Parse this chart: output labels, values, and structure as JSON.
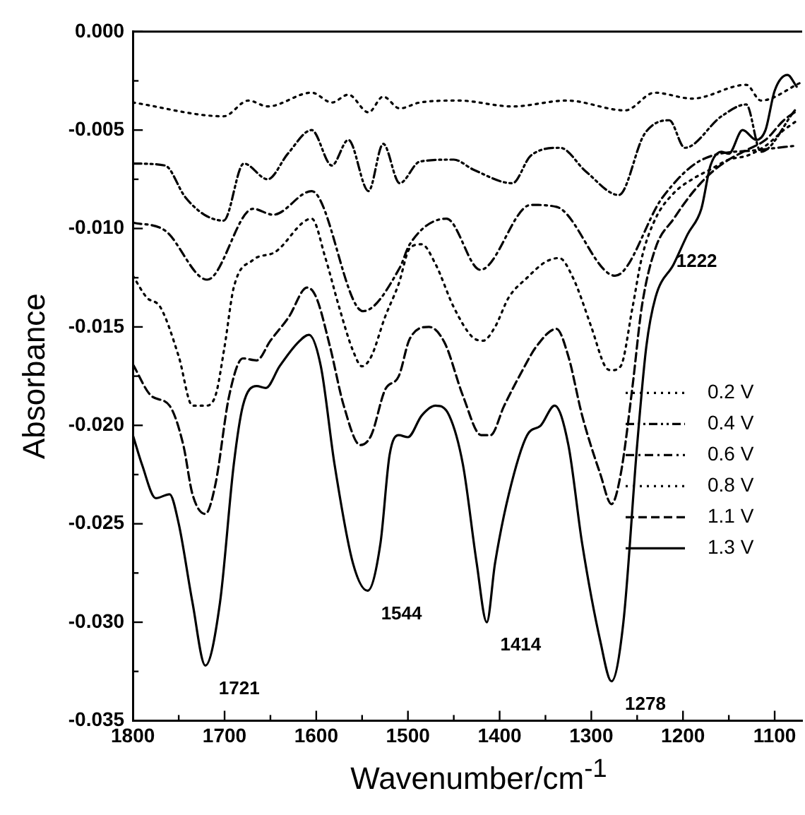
{
  "chart_data": {
    "type": "line",
    "xlabel": "Wavenumber/cm$^{-1}$",
    "ylabel": "Absorbance",
    "xlim": [
      1800,
      1070
    ],
    "ylim": [
      -0.035,
      0
    ],
    "xticks": [
      1800,
      {
        "value": 1750,
        "label": null
      },
      1700,
      {
        "value": 1650,
        "label": null
      },
      1600,
      {
        "value": 1550,
        "label": null
      },
      1500,
      {
        "value": 1450,
        "label": null
      },
      1400,
      {
        "value": 1350,
        "label": null
      },
      1300,
      {
        "value": 1250,
        "label": null
      },
      1200,
      {
        "value": 1150,
        "label": null
      },
      1100
    ],
    "yticks": [
      {
        "value": 0,
        "label": "0.000"
      },
      {
        "value": -0.0025,
        "label": null
      },
      -0.005,
      {
        "value": -0.0075,
        "label": null
      },
      {
        "value": -0.01,
        "label": "-0.010"
      },
      {
        "value": -0.0125,
        "label": null
      },
      -0.015,
      {
        "value": -0.0175,
        "label": null
      },
      {
        "value": -0.02,
        "label": "-0.020"
      },
      {
        "value": -0.0225,
        "label": null
      },
      -0.025,
      {
        "value": -0.0275,
        "label": null
      },
      {
        "value": -0.03,
        "label": "-0.030"
      },
      {
        "value": -0.0325,
        "label": null
      },
      -0.035
    ],
    "grid": false,
    "legend": "bottom right",
    "marker": "none",
    "annotations": [
      {
        "text": "1721",
        "x": 1721,
        "y": -0.0322
      },
      {
        "text": "1544",
        "x": 1544,
        "y": -0.0284
      },
      {
        "text": "1414",
        "x": 1414,
        "y": -0.03
      },
      {
        "text": "1278",
        "x": 1278,
        "y": -0.033
      },
      {
        "text": "1222",
        "x": 1222,
        "y": -0.0105
      }
    ],
    "series": [
      {
        "name": "0.2 V",
        "color": "#000000",
        "line_style": "dotted",
        "x": [
          1800,
          1701,
          1674,
          1653,
          1605,
          1583,
          1565,
          1543,
          1527,
          1509,
          1487,
          1445,
          1386,
          1327,
          1263,
          1231,
          1190,
          1131,
          1115,
          1072
        ],
        "values": [
          -0.0036,
          -0.0043,
          -0.0035,
          -0.0038,
          -0.0031,
          -0.0036,
          -0.0032,
          -0.0041,
          -0.0033,
          -0.0039,
          -0.0036,
          -0.0035,
          -0.0038,
          -0.0035,
          -0.004,
          -0.0031,
          -0.0034,
          -0.0027,
          -0.0035,
          -0.0026
        ]
      },
      {
        "name": "0.4 V",
        "color": "#000000",
        "line_style": "dashdotdot",
        "x": [
          1800,
          1765,
          1743,
          1722,
          1701,
          1679,
          1653,
          1631,
          1605,
          1583,
          1565,
          1543,
          1527,
          1509,
          1487,
          1450,
          1429,
          1386,
          1366,
          1334,
          1306,
          1270,
          1242,
          1215,
          1198,
          1158,
          1131,
          1115,
          1078
        ],
        "values": [
          -0.0067,
          -0.0068,
          -0.0084,
          -0.0093,
          -0.0096,
          -0.0067,
          -0.0075,
          -0.0062,
          -0.005,
          -0.0068,
          -0.0055,
          -0.0081,
          -0.0057,
          -0.0077,
          -0.0066,
          -0.0065,
          -0.007,
          -0.0077,
          -0.0063,
          -0.0059,
          -0.0071,
          -0.0083,
          -0.0052,
          -0.0045,
          -0.0059,
          -0.0043,
          -0.0037,
          -0.0061,
          -0.004
        ]
      },
      {
        "name": "0.6 V",
        "color": "#000000",
        "line_style": "dashdot",
        "x": [
          1800,
          1765,
          1719,
          1669,
          1647,
          1605,
          1549,
          1509,
          1498,
          1458,
          1421,
          1366,
          1338,
          1274,
          1222,
          1179,
          1115,
          1078
        ],
        "values": [
          -0.0097,
          -0.0101,
          -0.0126,
          -0.009,
          -0.0093,
          -0.0081,
          -0.0142,
          -0.012,
          -0.0108,
          -0.0095,
          -0.0121,
          -0.0088,
          -0.0089,
          -0.0124,
          -0.0084,
          -0.0065,
          -0.006,
          -0.0058
        ]
      },
      {
        "name": "0.8 V",
        "color": "#000000",
        "line_style": "dotted",
        "x": [
          1800,
          1785,
          1770,
          1750,
          1735,
          1721,
          1710,
          1700,
          1690,
          1669,
          1645,
          1605,
          1590,
          1575,
          1560,
          1550,
          1540,
          1525,
          1510,
          1498,
          1485,
          1470,
          1450,
          1430,
          1418,
          1405,
          1390,
          1370,
          1350,
          1335,
          1320,
          1300,
          1285,
          1278,
          1268,
          1255,
          1245,
          1230,
          1210,
          1190,
          1170,
          1150,
          1130,
          1110,
          1090,
          1075
        ],
        "values": [
          -0.0124,
          -0.0135,
          -0.014,
          -0.0165,
          -0.019,
          -0.019,
          -0.0185,
          -0.016,
          -0.013,
          -0.0116,
          -0.0112,
          -0.0095,
          -0.0115,
          -0.014,
          -0.0162,
          -0.017,
          -0.0165,
          -0.0145,
          -0.0128,
          -0.011,
          -0.0108,
          -0.0118,
          -0.014,
          -0.0155,
          -0.0157,
          -0.015,
          -0.0135,
          -0.0125,
          -0.0117,
          -0.0115,
          -0.0125,
          -0.015,
          -0.017,
          -0.0172,
          -0.017,
          -0.014,
          -0.0115,
          -0.0095,
          -0.0082,
          -0.0075,
          -0.007,
          -0.0065,
          -0.0063,
          -0.0058,
          -0.005,
          -0.0045
        ]
      },
      {
        "name": "1.1 V",
        "color": "#000000",
        "line_style": "dashed",
        "x": [
          1800,
          1780,
          1760,
          1745,
          1735,
          1721,
          1710,
          1695,
          1680,
          1665,
          1650,
          1630,
          1610,
          1600,
          1585,
          1570,
          1552,
          1540,
          1525,
          1510,
          1498,
          1477,
          1460,
          1440,
          1420,
          1410,
          1395,
          1375,
          1360,
          1338,
          1325,
          1310,
          1290,
          1278,
          1268,
          1255,
          1245,
          1230,
          1210,
          1190,
          1170,
          1150,
          1130,
          1110,
          1090,
          1075
        ],
        "values": [
          -0.0169,
          -0.0185,
          -0.019,
          -0.021,
          -0.0235,
          -0.0245,
          -0.023,
          -0.0185,
          -0.0166,
          -0.0167,
          -0.0157,
          -0.0145,
          -0.013,
          -0.0135,
          -0.016,
          -0.019,
          -0.021,
          -0.0205,
          -0.0182,
          -0.0175,
          -0.0156,
          -0.015,
          -0.0158,
          -0.0185,
          -0.0205,
          -0.0205,
          -0.019,
          -0.0172,
          -0.016,
          -0.0151,
          -0.0165,
          -0.0195,
          -0.0225,
          -0.024,
          -0.0225,
          -0.018,
          -0.014,
          -0.011,
          -0.0095,
          -0.0082,
          -0.0072,
          -0.0065,
          -0.006,
          -0.0055,
          -0.0045,
          -0.004
        ]
      },
      {
        "name": "1.3 V",
        "color": "#000000",
        "line_style": "solid",
        "x": [
          1800,
          1790,
          1775,
          1760,
          1750,
          1735,
          1721,
          1705,
          1690,
          1680,
          1665,
          1655,
          1640,
          1620,
          1608,
          1595,
          1580,
          1560,
          1544,
          1530,
          1520,
          1510,
          1500,
          1485,
          1470,
          1455,
          1440,
          1425,
          1414,
          1405,
          1390,
          1370,
          1355,
          1340,
          1325,
          1310,
          1290,
          1278,
          1265,
          1250,
          1240,
          1230,
          1210,
          1195,
          1180,
          1170,
          1158,
          1150,
          1135,
          1120,
          1110,
          1100,
          1086,
          1076
        ],
        "values": [
          -0.0205,
          -0.022,
          -0.0237,
          -0.0235,
          -0.025,
          -0.029,
          -0.0322,
          -0.029,
          -0.022,
          -0.019,
          -0.018,
          -0.0181,
          -0.017,
          -0.0158,
          -0.0154,
          -0.017,
          -0.022,
          -0.027,
          -0.0284,
          -0.026,
          -0.0215,
          -0.0205,
          -0.0206,
          -0.0195,
          -0.019,
          -0.0195,
          -0.022,
          -0.027,
          -0.03,
          -0.027,
          -0.0235,
          -0.0205,
          -0.02,
          -0.019,
          -0.021,
          -0.026,
          -0.031,
          -0.033,
          -0.03,
          -0.021,
          -0.016,
          -0.0135,
          -0.0118,
          -0.0103,
          -0.009,
          -0.0068,
          -0.0061,
          -0.0062,
          -0.005,
          -0.0055,
          -0.005,
          -0.003,
          -0.0022,
          -0.0028
        ]
      }
    ]
  }
}
